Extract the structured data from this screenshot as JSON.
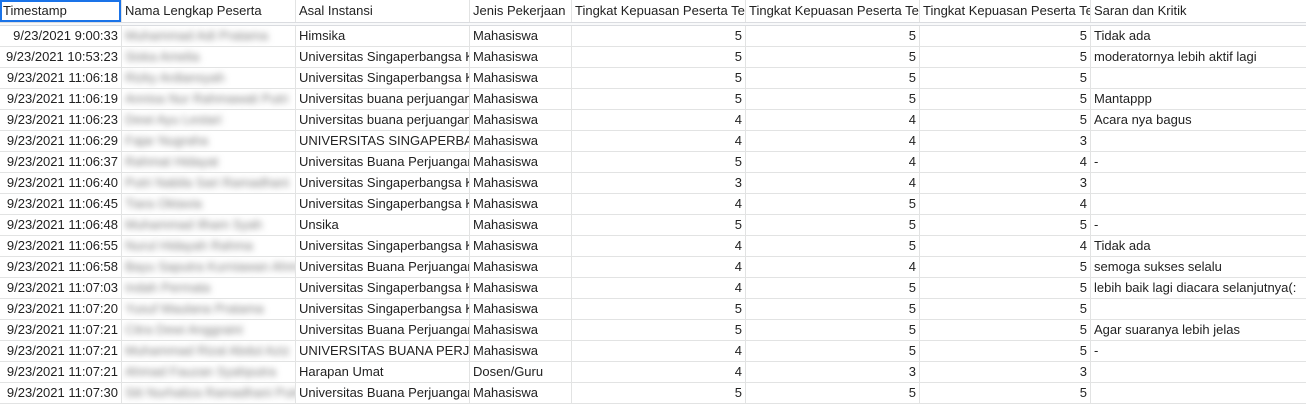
{
  "sheet": {
    "headers": [
      "Timestamp",
      "Nama Lengkap Peserta",
      "Asal Instansi",
      "Jenis Pekerjaan",
      "Tingkat Kepuasan Peserta Terhadap Narasumber",
      "Tingkat Kepuasan Peserta Terhadap Moderator",
      "Tingkat Kepuasan Peserta Terhadap Acara",
      "Saran dan Kritik"
    ],
    "rows": [
      [
        "9/23/2021 9:00:33",
        "Muhammad Adi Pratama",
        "Himsika",
        "Mahasiswa",
        "5",
        "5",
        "5",
        "Tidak ada"
      ],
      [
        "9/23/2021 10:53:23",
        "Siska Amelia",
        "Universitas Singaperbangsa Karawang",
        "Mahasiswa",
        "5",
        "5",
        "5",
        "moderatornya lebih aktif lagi"
      ],
      [
        "9/23/2021 11:06:18",
        "Rizky Ardiansyah",
        "Universitas Singaperbangsa Karawang",
        "Mahasiswa",
        "5",
        "5",
        "5",
        ""
      ],
      [
        "9/23/2021 11:06:19",
        "Annisa Nur Rahmawati Putri",
        "Universitas buana perjuangan",
        "Mahasiswa",
        "5",
        "5",
        "5",
        "Mantappp"
      ],
      [
        "9/23/2021 11:06:23",
        "Dewi Ayu Lestari",
        "Universitas buana perjuangan",
        "Mahasiswa",
        "4",
        "4",
        "5",
        "Acara nya bagus"
      ],
      [
        "9/23/2021 11:06:29",
        "Fajar Nugraha",
        "UNIVERSITAS SINGAPERBANGSA KARAWANG",
        "Mahasiswa",
        "4",
        "4",
        "3",
        ""
      ],
      [
        "9/23/2021 11:06:37",
        "Rahmat Hidayat",
        "Universitas Buana Perjuangan",
        "Mahasiswa",
        "5",
        "4",
        "4",
        "-"
      ],
      [
        "9/23/2021 11:06:40",
        "Putri Nabila Sari Ramadhani",
        "Universitas Singaperbangsa Karawang",
        "Mahasiswa",
        "3",
        "4",
        "3",
        ""
      ],
      [
        "9/23/2021 11:06:45",
        "Tiara Oktavia",
        "Universitas Singaperbangsa Karawang",
        "Mahasiswa",
        "4",
        "5",
        "4",
        ""
      ],
      [
        "9/23/2021 11:06:48",
        "Muhammad Ilham Syah",
        "Unsika",
        "Mahasiswa",
        "5",
        "5",
        "5",
        "-"
      ],
      [
        "9/23/2021 11:06:55",
        "Nurul Hidayah Rahma",
        "Universitas Singaperbangsa Karawang",
        "Mahasiswa",
        "4",
        "5",
        "4",
        "Tidak ada"
      ],
      [
        "9/23/2021 11:06:58",
        "Bayu Saputra Kurniawan Ahmad",
        "Universitas Buana Perjuangan",
        "Mahasiswa",
        "4",
        "4",
        "5",
        "semoga sukses selalu"
      ],
      [
        "9/23/2021 11:07:03",
        "Indah Permata",
        "Universitas Singaperbangsa Karawang",
        "Mahasiswa",
        "4",
        "5",
        "5",
        "lebih baik lagi diacara selanjutnya(:"
      ],
      [
        "9/23/2021 11:07:20",
        "Yusuf Maulana Pratama",
        "Universitas Singaperbangsa Karawang",
        "Mahasiswa",
        "5",
        "5",
        "5",
        ""
      ],
      [
        "9/23/2021 11:07:21",
        "Citra Dewi Anggraini",
        "Universitas Buana Perjuangan",
        "Mahasiswa",
        "5",
        "5",
        "5",
        "Agar suaranya lebih jelas"
      ],
      [
        "9/23/2021 11:07:21",
        "Muhammad Rizal Abdul Aziz",
        "UNIVERSITAS BUANA PERJUANGAN",
        "Mahasiswa",
        "4",
        "5",
        "5",
        "-"
      ],
      [
        "9/23/2021 11:07:21",
        "Ahmad Fauzan Syahputra",
        "Harapan Umat",
        "Dosen/Guru",
        "4",
        "3",
        "3",
        ""
      ],
      [
        "9/23/2021 11:07:30",
        "Siti Nurhaliza Ramadhani Putri",
        "Universitas Buana Perjuangan",
        "Mahasiswa",
        "5",
        "5",
        "5",
        ""
      ]
    ]
  }
}
